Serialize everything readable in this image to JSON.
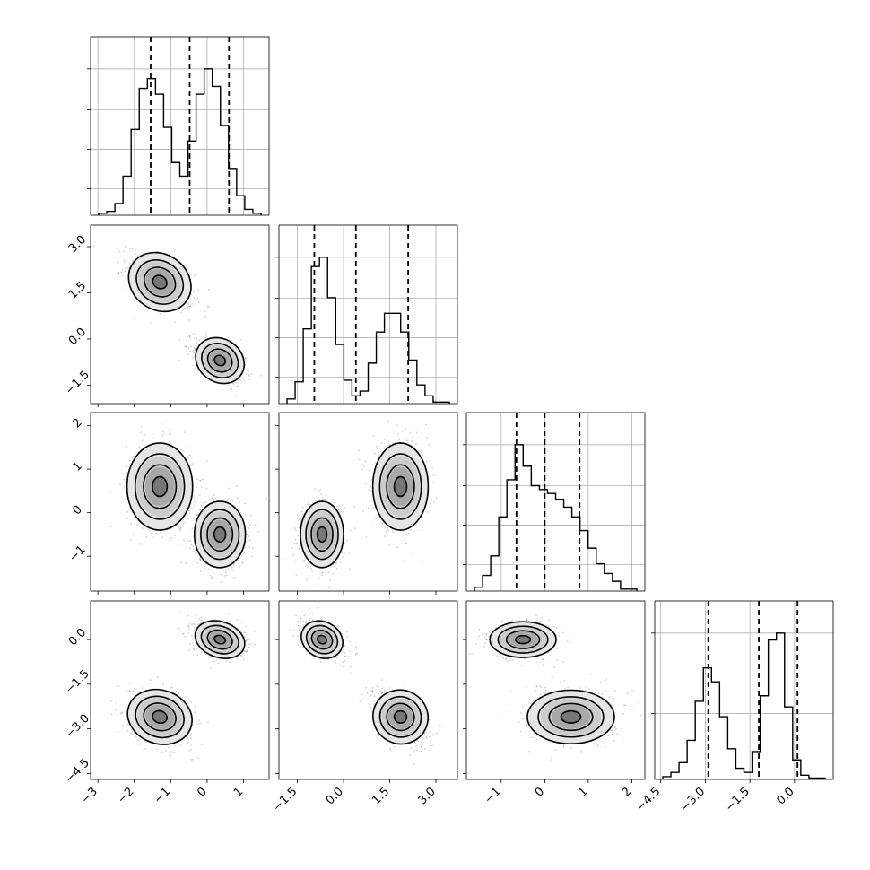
{
  "chart_data": {
    "type": "corner",
    "dimensions": 4,
    "ticks": [
      {
        "values": [
          -3,
          -2,
          -1,
          0,
          1
        ],
        "labels": [
          "−3",
          "−2",
          "−1",
          "0",
          "1"
        ],
        "range": [
          -3.2,
          1.7
        ]
      },
      {
        "values": [
          -1.5,
          0.0,
          1.5,
          3.0
        ],
        "labels": [
          "−1.5",
          "0.0",
          "1.5",
          "3.0"
        ],
        "range": [
          -2.1,
          3.7
        ]
      },
      {
        "values": [
          -1,
          0,
          1,
          2
        ],
        "labels": [
          "−1",
          "0",
          "1",
          "2"
        ],
        "range": [
          -1.8,
          2.3
        ]
      },
      {
        "values": [
          -4.5,
          -3.0,
          -1.5,
          0.0
        ],
        "labels": [
          "−4.5",
          "−3.0",
          "−1.5",
          "0.0"
        ],
        "range": [
          -4.7,
          1.3
        ]
      }
    ],
    "quantiles": [
      [
        -1.55,
        -0.48,
        0.6
      ],
      [
        -0.95,
        0.4,
        2.1
      ],
      [
        -0.65,
        0.0,
        0.8
      ],
      [
        -2.9,
        -1.2,
        0.1
      ]
    ],
    "histograms": [
      {
        "bins": 20,
        "counts": [
          1,
          2,
          6,
          20,
          44,
          65,
          70,
          62,
          45,
          27,
          20,
          38,
          62,
          75,
          66,
          46,
          24,
          10,
          3,
          1
        ]
      },
      {
        "bins": 20,
        "counts": [
          3,
          14,
          48,
          88,
          94,
          68,
          38,
          15,
          5,
          8,
          26,
          46,
          58,
          58,
          46,
          28,
          12,
          5,
          1,
          1
        ]
      },
      {
        "bins": 20,
        "counts": [
          2,
          8,
          18,
          38,
          57,
          75,
          64,
          54,
          52,
          50,
          47,
          43,
          38,
          31,
          22,
          14,
          9,
          5,
          1,
          1
        ]
      },
      {
        "bins": 20,
        "counts": [
          2,
          5,
          12,
          28,
          56,
          80,
          70,
          45,
          22,
          8,
          5,
          20,
          60,
          100,
          105,
          52,
          14,
          3,
          1,
          1
        ]
      }
    ],
    "components": [
      {
        "mean": [
          -1.3,
          1.85,
          0.6,
          -2.6
        ],
        "sd": [
          0.45,
          0.45,
          0.5,
          0.45
        ]
      },
      {
        "mean": [
          0.35,
          -0.7,
          -0.5,
          0.0
        ],
        "sd": [
          0.35,
          0.35,
          0.38,
          0.3
        ]
      }
    ],
    "correlations": [
      [
        0,
        1,
        2,
        3
      ]
    ],
    "grid": true
  }
}
